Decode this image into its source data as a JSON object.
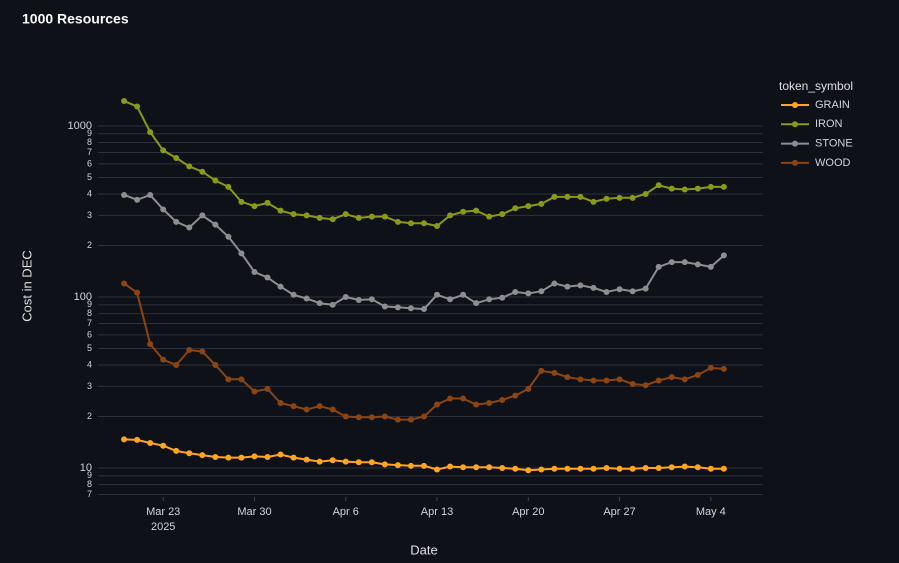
{
  "chart_data": {
    "type": "line",
    "title": "1000 Resources",
    "xlabel": "Date",
    "ylabel": "Cost in DEC",
    "legend_title": "token_symbol",
    "log_y": true,
    "grid": true,
    "legend": "right",
    "x": [
      "2025-03-20",
      "2025-03-21",
      "2025-03-22",
      "2025-03-23",
      "2025-03-24",
      "2025-03-25",
      "2025-03-26",
      "2025-03-27",
      "2025-03-28",
      "2025-03-29",
      "2025-03-30",
      "2025-03-31",
      "2025-04-01",
      "2025-04-02",
      "2025-04-03",
      "2025-04-04",
      "2025-04-05",
      "2025-04-06",
      "2025-04-07",
      "2025-04-08",
      "2025-04-09",
      "2025-04-10",
      "2025-04-11",
      "2025-04-12",
      "2025-04-13",
      "2025-04-14",
      "2025-04-15",
      "2025-04-16",
      "2025-04-17",
      "2025-04-18",
      "2025-04-19",
      "2025-04-20",
      "2025-04-21",
      "2025-04-22",
      "2025-04-23",
      "2025-04-24",
      "2025-04-25",
      "2025-04-26",
      "2025-04-27",
      "2025-04-28",
      "2025-04-29",
      "2025-04-30",
      "2025-05-01",
      "2025-05-02",
      "2025-05-03",
      "2025-05-04",
      "2025-05-05"
    ],
    "xlim": [
      "2025-03-18",
      "2025-05-08"
    ],
    "xticks": [
      {
        "value": "2025-03-23",
        "label": "Mar 23"
      },
      {
        "value": "2025-03-30",
        "label": "Mar 30"
      },
      {
        "value": "2025-04-06",
        "label": "Apr 6"
      },
      {
        "value": "2025-04-13",
        "label": "Apr 13"
      },
      {
        "value": "2025-04-20",
        "label": "Apr 20"
      },
      {
        "value": "2025-04-27",
        "label": "Apr 27"
      },
      {
        "value": "2025-05-04",
        "label": "May 4"
      }
    ],
    "xtick_year": "2025",
    "ylim": [
      6.77,
      2430
    ],
    "yticks": [
      7,
      8,
      9,
      10,
      {
        "value": 20,
        "label": "2"
      },
      {
        "value": 30,
        "label": "3"
      },
      {
        "value": 40,
        "label": "4"
      },
      {
        "value": 50,
        "label": "5"
      },
      {
        "value": 60,
        "label": "6"
      },
      {
        "value": 70,
        "label": "7"
      },
      {
        "value": 80,
        "label": "8"
      },
      {
        "value": 90,
        "label": "9"
      },
      100,
      {
        "value": 200,
        "label": "2"
      },
      {
        "value": 300,
        "label": "3"
      },
      {
        "value": 400,
        "label": "4"
      },
      {
        "value": 500,
        "label": "5"
      },
      {
        "value": 600,
        "label": "6"
      },
      {
        "value": 700,
        "label": "7"
      },
      {
        "value": 800,
        "label": "8"
      },
      {
        "value": 900,
        "label": "9"
      },
      1000
    ],
    "series": [
      {
        "name": "GRAIN",
        "color": "#ffa421",
        "values": [
          14.7,
          14.6,
          14,
          13.5,
          12.6,
          12.2,
          11.9,
          11.6,
          11.5,
          11.5,
          11.7,
          11.6,
          12,
          11.5,
          11.2,
          10.9,
          11.1,
          10.9,
          10.8,
          10.8,
          10.5,
          10.4,
          10.3,
          10.3,
          9.8,
          10.2,
          10.1,
          10.1,
          10.1,
          10,
          9.9,
          9.7,
          9.8,
          9.9,
          9.9,
          9.9,
          9.9,
          10,
          9.9,
          9.9,
          10,
          10,
          10.1,
          10.2,
          10.1,
          9.9,
          9.9
        ]
      },
      {
        "name": "IRON",
        "color": "#8a9a18",
        "values": [
          1400,
          1300,
          920,
          720,
          650,
          580,
          540,
          480,
          440,
          360,
          340,
          355,
          320,
          305,
          300,
          290,
          285,
          305,
          290,
          295,
          295,
          275,
          270,
          270,
          260,
          300,
          315,
          320,
          295,
          305,
          330,
          340,
          350,
          385,
          385,
          385,
          360,
          375,
          380,
          380,
          400,
          450,
          430,
          425,
          430,
          440,
          440
        ]
      },
      {
        "name": "STONE",
        "color": "#8e8e8e",
        "values": [
          395,
          370,
          395,
          325,
          275,
          255,
          300,
          265,
          225,
          180,
          140,
          130,
          115,
          103,
          98,
          92,
          90,
          100,
          96,
          97,
          88,
          87,
          86,
          85,
          103,
          97,
          103,
          92,
          97,
          99,
          107,
          105,
          108,
          120,
          115,
          117,
          113,
          107,
          111,
          108,
          112,
          150,
          160,
          160,
          155,
          150,
          175
        ]
      },
      {
        "name": "WOOD",
        "color": "#8b4513",
        "values": [
          120,
          106,
          53,
          43,
          40,
          49,
          48,
          40,
          33,
          33,
          28,
          29,
          24,
          23,
          22,
          23,
          22,
          20,
          19.8,
          19.8,
          20,
          19.2,
          19.2,
          20,
          23.5,
          25.5,
          25.5,
          23.5,
          24,
          25,
          26.5,
          29,
          37,
          36,
          34,
          33,
          32.5,
          32.5,
          33,
          31,
          30.5,
          32.5,
          34,
          33,
          35,
          38.5,
          38
        ]
      }
    ]
  }
}
